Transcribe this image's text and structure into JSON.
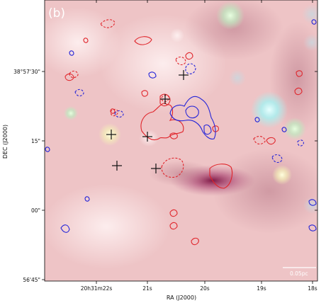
{
  "panel_label": "(b)",
  "x_axis": {
    "title": "RA (J2000)",
    "ticks": [
      {
        "label": "20h31m22s"
      },
      {
        "label": "21s"
      },
      {
        "label": "20s"
      },
      {
        "label": "19s"
      },
      {
        "label": "18s"
      }
    ]
  },
  "y_axis": {
    "title": "DEC (J2000)",
    "ticks": [
      {
        "label": "38°57'30\""
      },
      {
        "label": "15\""
      },
      {
        "label": "00\""
      },
      {
        "label": "56'45\""
      }
    ]
  },
  "scale_bar": {
    "label": "0.05pc"
  },
  "colors": {
    "red_contours": "#e0242a",
    "blue_contours": "#2424d8",
    "markers": "#111111",
    "background_pink": "#f0c8c8",
    "bright_star_cyan": "#c8f8f8"
  },
  "marker_count": 6,
  "marker_symbol": "plus"
}
